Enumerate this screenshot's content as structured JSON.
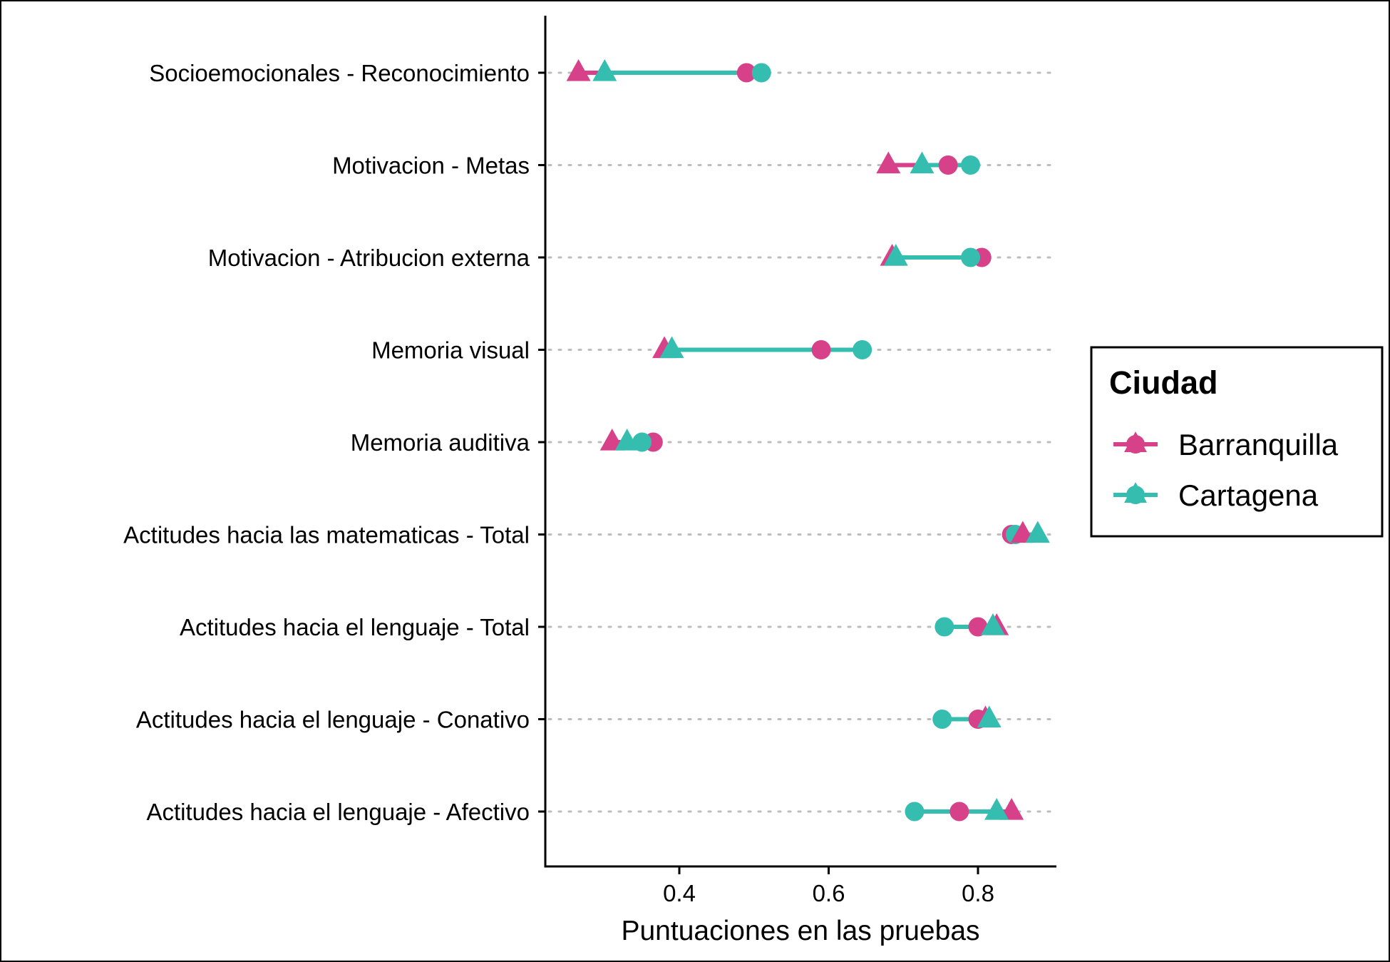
{
  "chart_data": {
    "type": "dumbbell",
    "xlabel": "Puntuaciones en las pruebas",
    "ylabel": "",
    "xlim": [
      0.225,
      0.9
    ],
    "xticks": [
      "0.4",
      "0.6",
      "0.8"
    ],
    "xtick_values": [
      0.4,
      0.6,
      0.8
    ],
    "grid": "dotted horizontal guide per category",
    "categories": [
      "Socioemocionales - Reconocimiento",
      "Motivacion - Metas",
      "Motivacion - Atribucion externa",
      "Memoria visual",
      "Memoria auditiva",
      "Actitudes hacia las matematicas - Total",
      "Actitudes hacia el lenguaje - Total",
      "Actitudes hacia el lenguaje - Conativo",
      "Actitudes hacia el lenguaje - Afectivo"
    ],
    "legend": {
      "title": "Ciudad",
      "position": "right",
      "entries": [
        "Barranquilla",
        "Cartagena"
      ]
    },
    "series": [
      {
        "name": "Barranquilla",
        "color": "#d6418a",
        "triangle": [
          0.265,
          0.68,
          0.685,
          0.38,
          0.31,
          0.86,
          0.825,
          0.81,
          0.845
        ],
        "circle": [
          0.49,
          0.76,
          0.805,
          0.59,
          0.365,
          0.845,
          0.8,
          0.8,
          0.775
        ]
      },
      {
        "name": "Cartagena",
        "color": "#35bdb0",
        "triangle": [
          0.3,
          0.725,
          0.69,
          0.39,
          0.33,
          0.88,
          0.82,
          0.815,
          0.825
        ],
        "circle": [
          0.51,
          0.79,
          0.79,
          0.645,
          0.35,
          0.85,
          0.755,
          0.752,
          0.715
        ]
      }
    ]
  }
}
